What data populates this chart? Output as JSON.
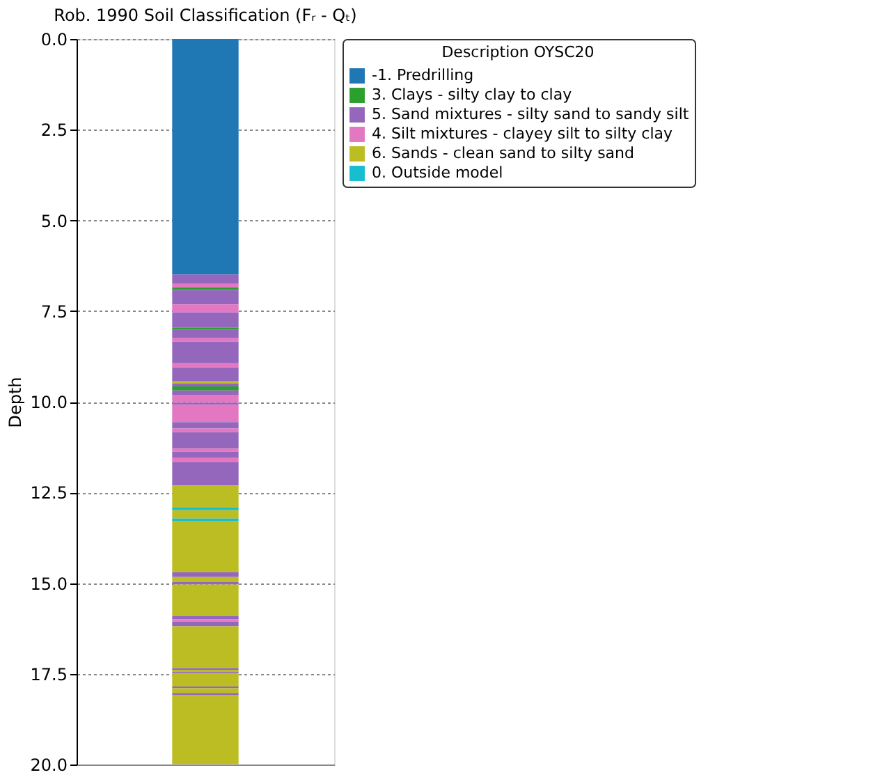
{
  "chart_data": {
    "type": "bar",
    "title": "Rob. 1990 Soil Classification (Fᵣ - Qₜ)",
    "ylabel": "Depth",
    "legend_title": "Description OYSC20",
    "categories": [
      null
    ],
    "stacked": true,
    "series": [
      {
        "name": "-1. Predrilling",
        "color": "#1f77b4",
        "values": [
          6.49
        ]
      },
      {
        "name": "5. Sand mixtures - silty sand to sandy silt",
        "color": "#9467bd",
        "values": [
          0.26
        ]
      },
      {
        "name": "4. Silt mixtures - clayey silt to silty clay",
        "color": "#e377c2",
        "values": [
          0.1
        ]
      },
      {
        "name": "3. Clays - silty clay to clay",
        "color": "#2ca02c",
        "values": [
          0.07
        ]
      },
      {
        "color": "#9467bd",
        "values": [
          0.4
        ]
      },
      {
        "color": "#e377c2",
        "values": [
          0.22
        ]
      },
      {
        "color": "#9467bd",
        "values": [
          0.42
        ]
      },
      {
        "color": "#2ca02c",
        "values": [
          0.06
        ]
      },
      {
        "color": "#9467bd",
        "values": [
          0.23
        ]
      },
      {
        "color": "#e377c2",
        "values": [
          0.09
        ]
      },
      {
        "color": "#9467bd",
        "values": [
          0.6
        ]
      },
      {
        "color": "#e377c2",
        "values": [
          0.11
        ]
      },
      {
        "color": "#9467bd",
        "values": [
          0.39
        ]
      },
      {
        "name": "6. Sands - clean sand to silty sand",
        "color": "#bcbd22",
        "values": [
          0.05
        ]
      },
      {
        "color": "#9467bd",
        "values": [
          0.09
        ]
      },
      {
        "color": "#2ca02c",
        "values": [
          0.11
        ]
      },
      {
        "color": "#9467bd",
        "values": [
          0.12
        ]
      },
      {
        "color": "#e377c2",
        "values": [
          0.22
        ]
      },
      {
        "color": "#9467bd",
        "values": [
          0.05
        ]
      },
      {
        "color": "#e377c2",
        "values": [
          0.48
        ]
      },
      {
        "color": "#9467bd",
        "values": [
          0.18
        ]
      },
      {
        "color": "#e377c2",
        "values": [
          0.1
        ]
      },
      {
        "color": "#9467bd",
        "values": [
          0.45
        ]
      },
      {
        "color": "#e377c2",
        "values": [
          0.08
        ]
      },
      {
        "color": "#9467bd",
        "values": [
          0.18
        ]
      },
      {
        "color": "#e377c2",
        "values": [
          0.12
        ]
      },
      {
        "color": "#9467bd",
        "values": [
          0.64
        ]
      },
      {
        "color": "#bcbd22",
        "values": [
          0.6
        ]
      },
      {
        "name": "0. Outside model",
        "color": "#17becf",
        "values": [
          0.08
        ]
      },
      {
        "color": "#bcbd22",
        "values": [
          0.23
        ]
      },
      {
        "color": "#17becf",
        "values": [
          0.06
        ]
      },
      {
        "color": "#bcbd22",
        "values": [
          1.42
        ]
      },
      {
        "color": "#9467bd",
        "values": [
          0.13
        ]
      },
      {
        "color": "#bcbd22",
        "values": [
          0.14
        ]
      },
      {
        "color": "#9467bd",
        "values": [
          0.07
        ]
      },
      {
        "color": "#bcbd22",
        "values": [
          0.86
        ]
      },
      {
        "color": "#9467bd",
        "values": [
          0.1
        ]
      },
      {
        "color": "#e377c2",
        "values": [
          0.06
        ]
      },
      {
        "color": "#9467bd",
        "values": [
          0.13
        ]
      },
      {
        "color": "#bcbd22",
        "values": [
          1.15
        ]
      },
      {
        "color": "#9467bd",
        "values": [
          0.05
        ]
      },
      {
        "color": "#bcbd22",
        "values": [
          0.05
        ]
      },
      {
        "color": "#9467bd",
        "values": [
          0.04
        ]
      },
      {
        "color": "#bcbd22",
        "values": [
          0.37
        ]
      },
      {
        "color": "#9467bd",
        "values": [
          0.05
        ]
      },
      {
        "color": "#bcbd22",
        "values": [
          0.13
        ]
      },
      {
        "color": "#9467bd",
        "values": [
          0.05
        ]
      },
      {
        "color": "#bcbd22",
        "values": [
          1.91
        ]
      }
    ],
    "ylim": [
      20,
      0
    ],
    "yticks": [
      {
        "value": 0,
        "label": "0.0"
      },
      {
        "value": 2.5,
        "label": "2.5"
      },
      {
        "value": 5,
        "label": "5.0"
      },
      {
        "value": 7.5,
        "label": "7.5"
      },
      {
        "value": 10,
        "label": "10.0"
      },
      {
        "value": 12.5,
        "label": "12.5"
      },
      {
        "value": 15,
        "label": "15.0"
      },
      {
        "value": 17.5,
        "label": "17.5"
      },
      {
        "value": 20,
        "label": "20.0"
      }
    ],
    "grid": "y",
    "legend": "right",
    "tick_labels": "y"
  }
}
